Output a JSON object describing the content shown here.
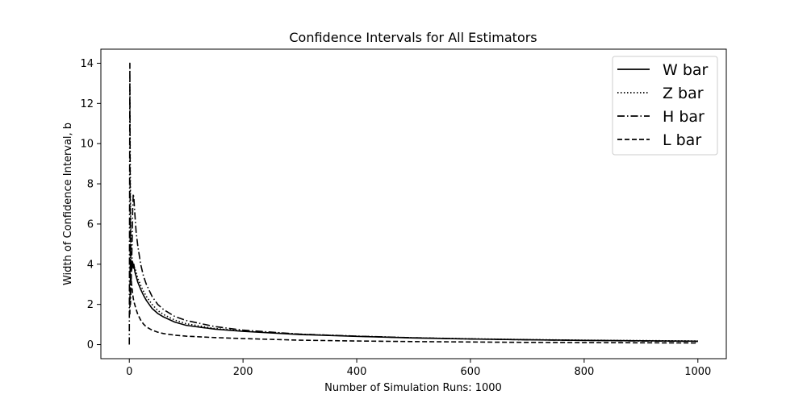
{
  "chart_data": {
    "type": "line",
    "title": "Confidence Intervals for All Estimators",
    "xlabel": "Number of Simulation Runs: 1000",
    "ylabel": "Width of Confidence Interval, b",
    "xlim": [
      -50,
      1050
    ],
    "ylim": [
      -0.7,
      14.7
    ],
    "xticks": [
      0,
      200,
      400,
      600,
      800,
      1000
    ],
    "yticks": [
      0,
      2,
      4,
      6,
      8,
      10,
      12,
      14
    ],
    "grid": false,
    "legend_position": "top-right",
    "series": [
      {
        "name": "W bar",
        "dash": "solid",
        "color": "#000000",
        "x": [
          1,
          2,
          3,
          4,
          5,
          6,
          7,
          8,
          10,
          12,
          15,
          20,
          25,
          30,
          40,
          50,
          60,
          80,
          100,
          150,
          200,
          300,
          400,
          500,
          600,
          700,
          800,
          900,
          1000
        ],
        "y": [
          3.5,
          3.9,
          4.0,
          3.7,
          4.0,
          4.1,
          3.8,
          4.0,
          3.6,
          3.4,
          3.1,
          2.75,
          2.45,
          2.2,
          1.8,
          1.55,
          1.38,
          1.12,
          0.96,
          0.77,
          0.66,
          0.5,
          0.41,
          0.33,
          0.28,
          0.24,
          0.21,
          0.19,
          0.17
        ]
      },
      {
        "name": "Z bar",
        "dash": "dotted",
        "color": "#000000",
        "x": [
          1,
          2,
          3,
          4,
          5,
          6,
          7,
          8,
          10,
          12,
          15,
          20,
          25,
          30,
          40,
          50,
          60,
          80,
          100,
          150,
          200,
          300,
          400,
          500,
          600,
          700,
          800,
          900,
          1000
        ],
        "y": [
          13.0,
          7.0,
          5.2,
          4.6,
          4.2,
          4.0,
          3.95,
          3.9,
          3.8,
          3.6,
          3.3,
          2.95,
          2.65,
          2.4,
          2.0,
          1.7,
          1.5,
          1.22,
          1.04,
          0.8,
          0.68,
          0.52,
          0.42,
          0.34,
          0.29,
          0.25,
          0.22,
          0.2,
          0.18
        ]
      },
      {
        "name": "H bar",
        "dash": "dashdot",
        "color": "#000000",
        "x": [
          0,
          1,
          2,
          3,
          4,
          5,
          6,
          7,
          8,
          10,
          12,
          15,
          20,
          25,
          30,
          40,
          50,
          60,
          80,
          100,
          150,
          200,
          300,
          400,
          500,
          600,
          700,
          800,
          900,
          1000
        ],
        "y": [
          0.0,
          14.0,
          2.0,
          3.0,
          4.0,
          5.2,
          6.8,
          7.5,
          7.3,
          6.4,
          5.6,
          4.9,
          4.0,
          3.4,
          3.0,
          2.4,
          2.0,
          1.75,
          1.4,
          1.2,
          0.9,
          0.72,
          0.52,
          0.42,
          0.34,
          0.28,
          0.24,
          0.21,
          0.18,
          0.16
        ]
      },
      {
        "name": "L bar",
        "dash": "dashed",
        "color": "#000000",
        "x": [
          1,
          2,
          3,
          4,
          5,
          6,
          7,
          8,
          10,
          12,
          15,
          20,
          25,
          30,
          40,
          50,
          60,
          80,
          100,
          150,
          200,
          300,
          400,
          500,
          600,
          700,
          800,
          900,
          1000
        ],
        "y": [
          1.5,
          6.3,
          3.5,
          3.0,
          2.8,
          2.5,
          2.3,
          2.15,
          1.95,
          1.75,
          1.5,
          1.22,
          1.02,
          0.88,
          0.72,
          0.62,
          0.55,
          0.47,
          0.42,
          0.35,
          0.3,
          0.22,
          0.18,
          0.15,
          0.13,
          0.11,
          0.1,
          0.09,
          0.08
        ]
      }
    ]
  }
}
